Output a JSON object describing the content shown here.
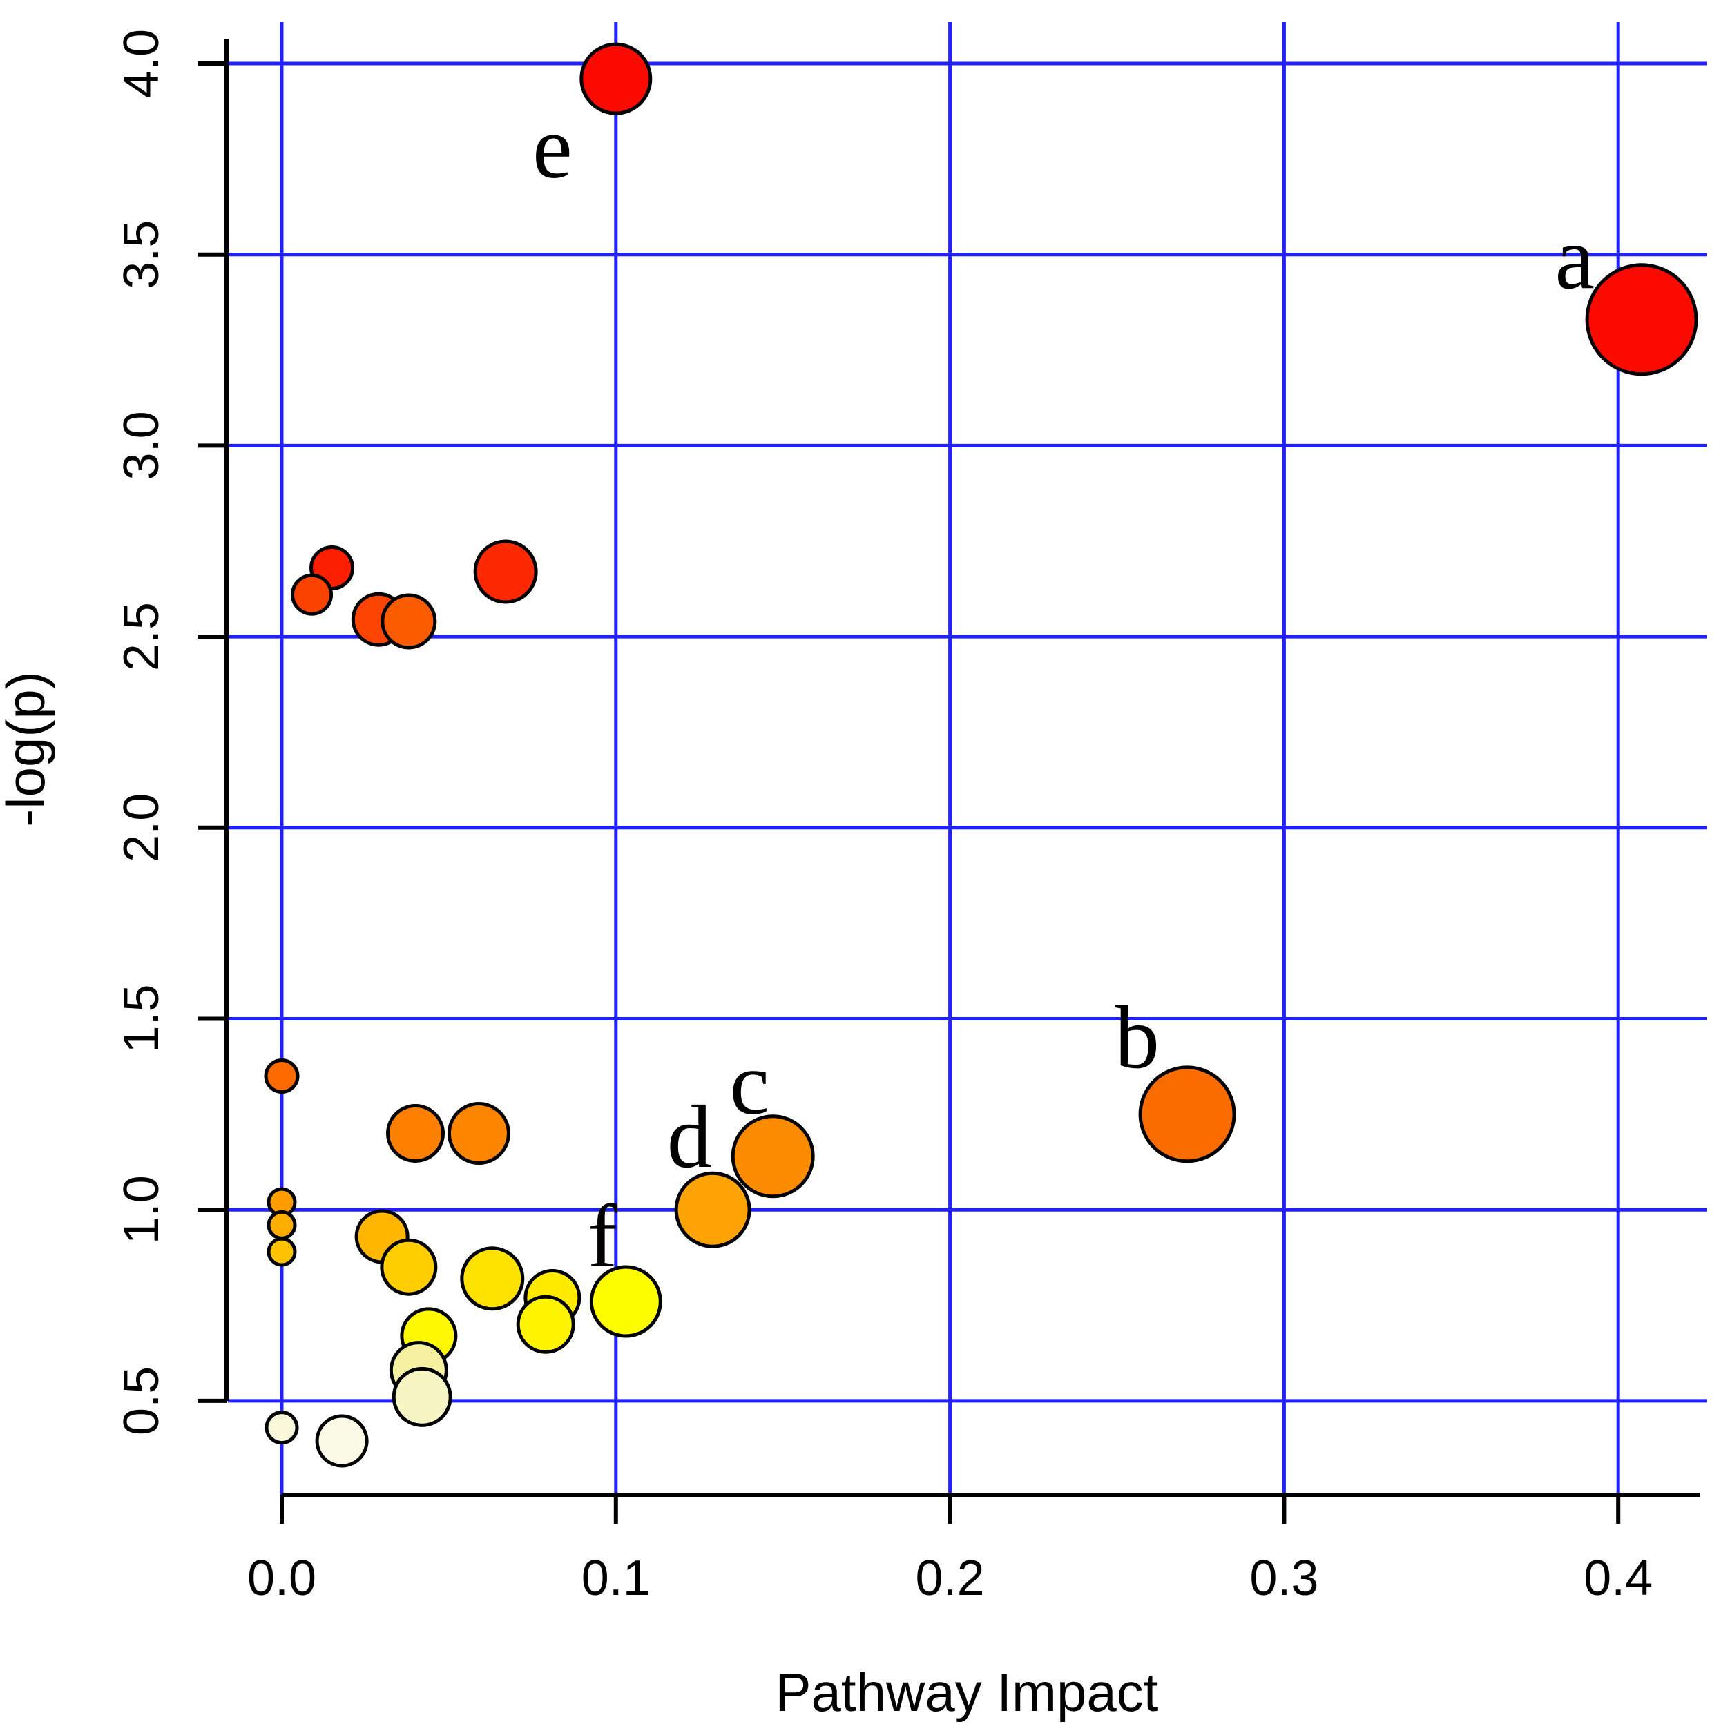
{
  "chart_data": {
    "type": "scatter",
    "subtype": "bubble",
    "title": "",
    "xlabel": "Pathway Impact",
    "ylabel": "-log(p)",
    "xlim": [
      -0.016,
      0.426
    ],
    "ylim": [
      0.25,
      4.1
    ],
    "grid": true,
    "legend": "none",
    "colors": {
      "grid_color": "#2121FF",
      "axis_color": "#000000",
      "point_stroke": "#000000",
      "background": "#FFFFFF",
      "scale_low": "#FFFFE0",
      "scale_high": "#FF0000"
    },
    "x_ticks": [
      {
        "v": 0.0,
        "label": "0.0"
      },
      {
        "v": 0.1,
        "label": "0.1"
      },
      {
        "v": 0.2,
        "label": "0.2"
      },
      {
        "v": 0.3,
        "label": "0.3"
      },
      {
        "v": 0.4,
        "label": "0.4"
      }
    ],
    "y_ticks": [
      {
        "v": 0.5,
        "label": "0.5"
      },
      {
        "v": 1.0,
        "label": "1.0"
      },
      {
        "v": 1.5,
        "label": "1.5"
      },
      {
        "v": 2.0,
        "label": "2.0"
      },
      {
        "v": 2.5,
        "label": "2.5"
      },
      {
        "v": 3.0,
        "label": "3.0"
      },
      {
        "v": 3.5,
        "label": "3.5"
      },
      {
        "v": 4.0,
        "label": "4.0"
      }
    ],
    "points": [
      {
        "x": 0.1,
        "y": 3.96,
        "r": 50,
        "color": "#FA0A00",
        "label": "e"
      },
      {
        "x": 0.407,
        "y": 3.33,
        "r": 79,
        "color": "#FA0A00",
        "label": "a"
      },
      {
        "x": 0.015,
        "y": 2.68,
        "r": 30,
        "color": "#FB1E00"
      },
      {
        "x": 0.067,
        "y": 2.67,
        "r": 44,
        "color": "#FB2800"
      },
      {
        "x": 0.009,
        "y": 2.61,
        "r": 28,
        "color": "#FB4300"
      },
      {
        "x": 0.029,
        "y": 2.545,
        "r": 37,
        "color": "#FB4500"
      },
      {
        "x": 0.038,
        "y": 2.54,
        "r": 38,
        "color": "#FC5C00"
      },
      {
        "x": 0.0,
        "y": 1.35,
        "r": 23,
        "color": "#FD6A00"
      },
      {
        "x": 0.271,
        "y": 1.25,
        "r": 68,
        "color": "#FB6C00",
        "label": "b"
      },
      {
        "x": 0.04,
        "y": 1.2,
        "r": 40,
        "color": "#FD8000"
      },
      {
        "x": 0.059,
        "y": 1.2,
        "r": 43,
        "color": "#FD8500"
      },
      {
        "x": 0.147,
        "y": 1.14,
        "r": 58,
        "color": "#FB8C00",
        "label": "c"
      },
      {
        "x": 0.0,
        "y": 1.02,
        "r": 19,
        "color": "#FD9D00"
      },
      {
        "x": 0.129,
        "y": 1.0,
        "r": 53,
        "color": "#FDA305",
        "label": "d"
      },
      {
        "x": 0.0,
        "y": 0.96,
        "r": 19,
        "color": "#FDAE00"
      },
      {
        "x": 0.03,
        "y": 0.93,
        "r": 37,
        "color": "#FEB600"
      },
      {
        "x": 0.0,
        "y": 0.89,
        "r": 19,
        "color": "#FEC200"
      },
      {
        "x": 0.038,
        "y": 0.85,
        "r": 39,
        "color": "#FECE00"
      },
      {
        "x": 0.063,
        "y": 0.82,
        "r": 44,
        "color": "#FEE200"
      },
      {
        "x": 0.081,
        "y": 0.77,
        "r": 39,
        "color": "#FEEB00"
      },
      {
        "x": 0.103,
        "y": 0.76,
        "r": 50,
        "color": "#FEFE00",
        "label": "f"
      },
      {
        "x": 0.079,
        "y": 0.7,
        "r": 40,
        "color": "#FEF400"
      },
      {
        "x": 0.044,
        "y": 0.67,
        "r": 39,
        "color": "#FEF800"
      },
      {
        "x": 0.041,
        "y": 0.58,
        "r": 40,
        "color": "#F5F1A0"
      },
      {
        "x": 0.042,
        "y": 0.51,
        "r": 41,
        "color": "#F8F5C4"
      },
      {
        "x": 0.0,
        "y": 0.43,
        "r": 22,
        "color": "#FAF8DA"
      },
      {
        "x": 0.018,
        "y": 0.395,
        "r": 36,
        "color": "#FBFAE6"
      }
    ],
    "annotations": [
      {
        "text": "e",
        "x": 0.081,
        "y": 3.78
      },
      {
        "text": "a",
        "x": 0.387,
        "y": 3.49
      },
      {
        "text": "b",
        "x": 0.256,
        "y": 1.45
      },
      {
        "text": "c",
        "x": 0.14,
        "y": 1.33
      },
      {
        "text": "d",
        "x": 0.122,
        "y": 1.19
      },
      {
        "text": "f",
        "x": 0.096,
        "y": 0.93
      }
    ]
  }
}
